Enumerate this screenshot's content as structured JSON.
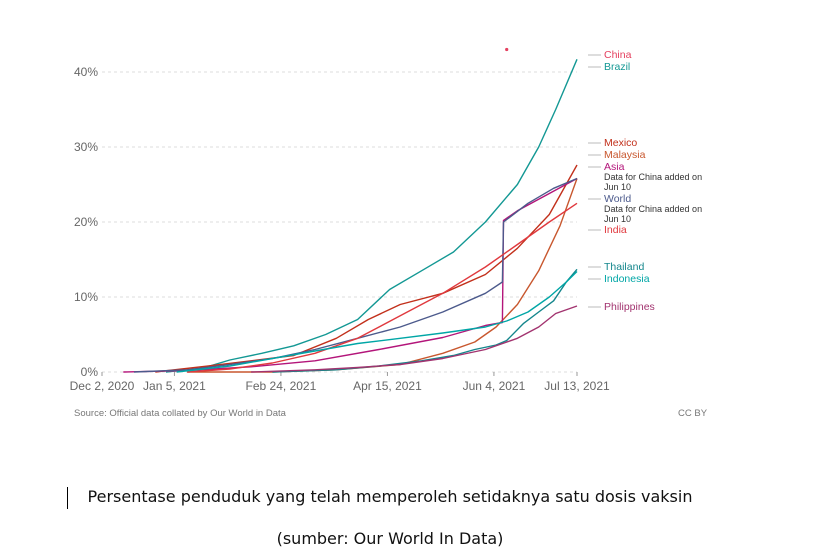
{
  "chart_data": {
    "type": "line",
    "ylim": [
      0,
      42
    ],
    "y_ticks": [
      0,
      10,
      20,
      30,
      40
    ],
    "y_tick_labels": [
      "0%",
      "10%",
      "20%",
      "30%",
      "40%"
    ],
    "x_tick_labels": [
      "Dec 2, 2020",
      "Jan 5, 2021",
      "Feb 24, 2021",
      "Apr 15, 2021",
      "Jun 4, 2021",
      "Jul 13, 2021"
    ],
    "x_tick_days": [
      0,
      34,
      84,
      134,
      184,
      223
    ],
    "grid": true,
    "legend": "right, inline labels at line ends",
    "series": [
      {
        "name": "China",
        "color": "#e4405f",
        "x": [
          190
        ],
        "y": [
          43
        ]
      },
      {
        "name": "Brazil",
        "color": "#139894",
        "x": [
          30,
          47,
          60,
          75,
          90,
          105,
          120,
          135,
          150,
          165,
          180,
          195,
          205,
          213,
          223
        ],
        "y": [
          0,
          0.5,
          1.6,
          2.5,
          3.5,
          5,
          7,
          11,
          13.5,
          16,
          20,
          25,
          30,
          35,
          41.7
        ]
      },
      {
        "name": "Mexico",
        "color": "#c2301b",
        "x": [
          25,
          50,
          70,
          90,
          110,
          125,
          140,
          160,
          180,
          195,
          210,
          223
        ],
        "y": [
          0,
          0.8,
          1.5,
          2.2,
          4.5,
          7,
          9,
          10.5,
          13,
          16.5,
          21,
          27.6
        ]
      },
      {
        "name": "Malaysia",
        "color": "#c8572e",
        "x": [
          40,
          80,
          110,
          140,
          160,
          175,
          185,
          195,
          205,
          215,
          223
        ],
        "y": [
          0,
          0,
          0.3,
          1,
          2.5,
          4,
          6,
          9,
          13.5,
          19.5,
          25.8
        ]
      },
      {
        "name": "Asia",
        "color": "#b3157a",
        "x": [
          10,
          40,
          70,
          100,
          130,
          160,
          180,
          188,
          188.5,
          195,
          210,
          223
        ],
        "y": [
          0,
          0.2,
          0.7,
          1.5,
          3,
          4.6,
          6.2,
          6.6,
          20.2,
          21.5,
          23.8,
          25.8
        ]
      },
      {
        "name": "World",
        "color": "#4c5a8c",
        "x": [
          15,
          40,
          60,
          80,
          100,
          120,
          140,
          160,
          180,
          188,
          188.5,
          200,
          212,
          223
        ],
        "y": [
          0,
          0.3,
          1,
          1.8,
          3,
          4.5,
          6,
          8,
          10.5,
          12,
          20,
          22.5,
          24.5,
          25.8
        ]
      },
      {
        "name": "India",
        "color": "#e0393e",
        "x": [
          40,
          60,
          80,
          100,
          120,
          140,
          160,
          180,
          195,
          210,
          223
        ],
        "y": [
          0,
          0.4,
          1.2,
          2.5,
          4.5,
          7.5,
          10.5,
          14,
          17,
          20,
          22.5
        ]
      },
      {
        "name": "Thailand",
        "color": "#14868c",
        "x": [
          80,
          110,
          130,
          150,
          165,
          175,
          185,
          190,
          198,
          205,
          212,
          218,
          223
        ],
        "y": [
          0,
          0.3,
          0.8,
          1.5,
          2.2,
          3,
          3.6,
          4.2,
          6.5,
          8,
          9.5,
          12,
          13.7
        ]
      },
      {
        "name": "Indonesia",
        "color": "#00a6a6",
        "x": [
          35,
          60,
          80,
          100,
          120,
          140,
          160,
          180,
          190,
          200,
          210,
          218,
          223
        ],
        "y": [
          0,
          0.8,
          1.8,
          2.8,
          3.8,
          4.5,
          5.2,
          6,
          6.8,
          8,
          10,
          12,
          13.4
        ]
      },
      {
        "name": "Philippines",
        "color": "#a2336f",
        "x": [
          70,
          100,
          120,
          140,
          160,
          180,
          195,
          205,
          213,
          223
        ],
        "y": [
          0,
          0.3,
          0.6,
          1,
          1.8,
          3,
          4.5,
          6,
          7.8,
          8.8
        ]
      }
    ],
    "annotations": [
      "Data for China added on Jun 10",
      "Data for China added on Jun 10"
    ]
  },
  "labels": {
    "china": "China",
    "brazil": "Brazil",
    "mexico": "Mexico",
    "malaysia": "Malaysia",
    "asia": "Asia",
    "note1_line1": "Data for China added on",
    "note1_line2": "Jun 10",
    "world": "World",
    "note2_line1": "Data for China added on",
    "note2_line2": "Jun 10",
    "india": "India",
    "thailand": "Thailand",
    "indonesia": "Indonesia",
    "philippines": "Philippines"
  },
  "source": "Source: Official data collated by Our World in Data",
  "license": "CC BY",
  "caption_line1": "Persentase penduduk yang telah memperoleh setidaknya satu dosis vaksin",
  "caption_line2": "(sumber: Our World In Data)"
}
